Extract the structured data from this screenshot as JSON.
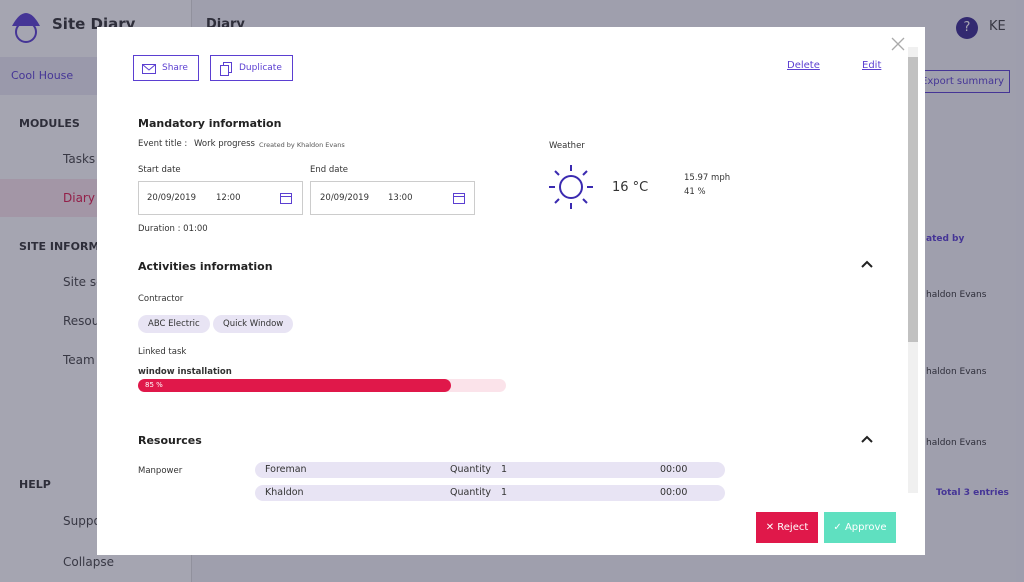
{
  "sidebar": {
    "app_name": "Site Diary",
    "project": "Cool House",
    "modules_heading": "MODULES",
    "modules": [
      "Tasks",
      "Diary"
    ],
    "site_heading": "SITE INFORMA",
    "site_items": [
      "Site se",
      "Resour",
      "Team"
    ],
    "help_heading": "HELP",
    "help_items": [
      "Suppo"
    ],
    "collapse": "Collapse"
  },
  "header": {
    "title": "Diary",
    "help": "?",
    "user": "KE"
  },
  "background": {
    "export": "Export summary",
    "column": "ated by",
    "rows": [
      "haldon Evans",
      "haldon Evans",
      "haldon Evans"
    ],
    "total": "Total 3 entries"
  },
  "modal": {
    "share": "Share",
    "duplicate": "Duplicate",
    "delete": "Delete",
    "edit": "Edit",
    "mandatory": {
      "heading": "Mandatory information",
      "event_label": "Event title :",
      "event_title": "Work progress",
      "created_by": "Created by Khaldon Evans",
      "start_label": "Start date",
      "start_date": "20/09/2019",
      "start_time": "12:00",
      "end_label": "End date",
      "end_date": "20/09/2019",
      "end_time": "13:00",
      "duration": "Duration : 01:00"
    },
    "weather": {
      "label": "Weather",
      "temperature": "16 °C",
      "wind": "15.97 mph",
      "humidity": "41 %"
    },
    "activities": {
      "heading": "Activities information",
      "contractor_label": "Contractor",
      "contractors": [
        "ABC Electric",
        "Quick Window"
      ],
      "linked_label": "Linked task",
      "task": "window installation",
      "progress": 85,
      "progress_label": "85 %"
    },
    "resources": {
      "heading": "Resources",
      "manpower_label": "Manpower",
      "rows": [
        [
          "Foreman",
          "Quantity",
          "1",
          "00:00"
        ],
        [
          "Khaldon",
          "Quantity",
          "1",
          "00:00"
        ]
      ]
    },
    "reject": "Reject",
    "approve": "Approve"
  }
}
